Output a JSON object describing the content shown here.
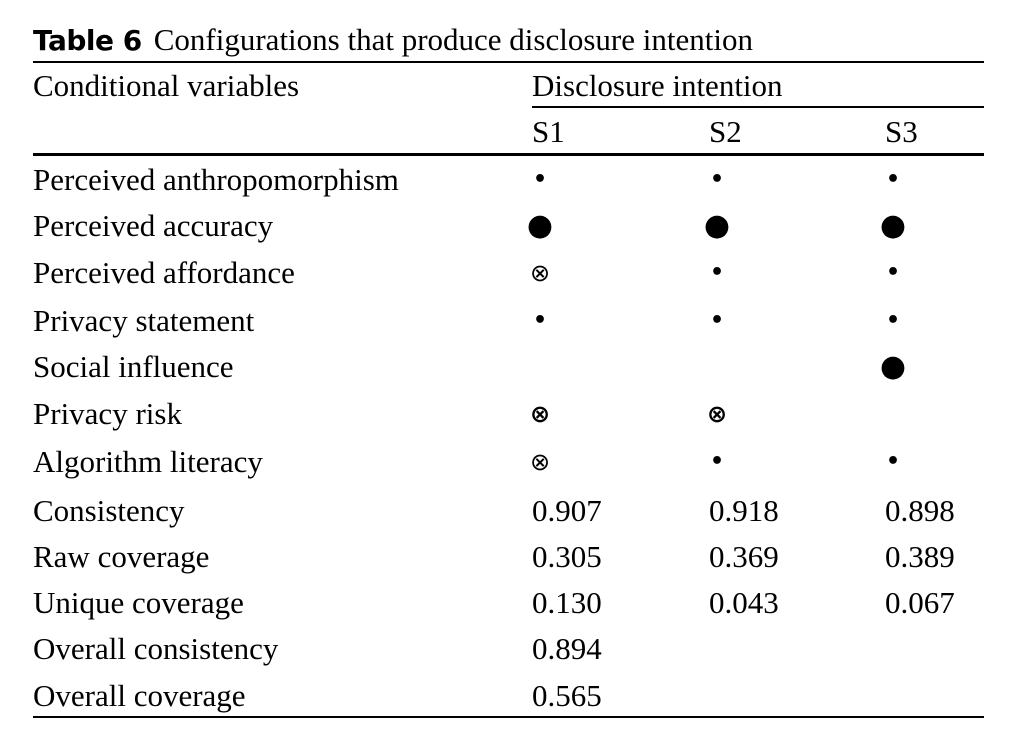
{
  "caption": {
    "label": "Table 6",
    "text": "Configurations that produce disclosure intention"
  },
  "header": {
    "conditional": "Conditional variables",
    "outcome": "Disclosure intention",
    "solutions": [
      "S1",
      "S2",
      "S3"
    ]
  },
  "rows": [
    {
      "label": "Perceived anthropomorphism",
      "cells": [
        "small-dot",
        "small-dot",
        "small-dot"
      ]
    },
    {
      "label": "Perceived accuracy",
      "cells": [
        "large-dot",
        "large-dot",
        "large-dot"
      ]
    },
    {
      "label": "Perceived affordance",
      "cells": [
        "otimes-small",
        "small-dot",
        "small-dot"
      ]
    },
    {
      "label": "Privacy statement",
      "cells": [
        "small-dot",
        "small-dot",
        "small-dot"
      ]
    },
    {
      "label": "Social influence",
      "cells": [
        "",
        "",
        "large-dot"
      ]
    },
    {
      "label": "Privacy risk",
      "cells": [
        "otimes-large",
        "otimes-large",
        ""
      ]
    },
    {
      "label": "Algorithm literacy",
      "cells": [
        "otimes-small",
        "small-dot",
        "small-dot"
      ]
    },
    {
      "label": "Consistency",
      "values": [
        "0.907",
        "0.918",
        "0.898"
      ]
    },
    {
      "label": "Raw coverage",
      "values": [
        "0.305",
        "0.369",
        "0.389"
      ]
    },
    {
      "label": "Unique coverage",
      "values": [
        "0.130",
        "0.043",
        "0.067"
      ]
    },
    {
      "label": "Overall consistency",
      "values": [
        "0.894"
      ]
    },
    {
      "label": "Overall coverage",
      "values": [
        "0.565"
      ]
    }
  ]
}
